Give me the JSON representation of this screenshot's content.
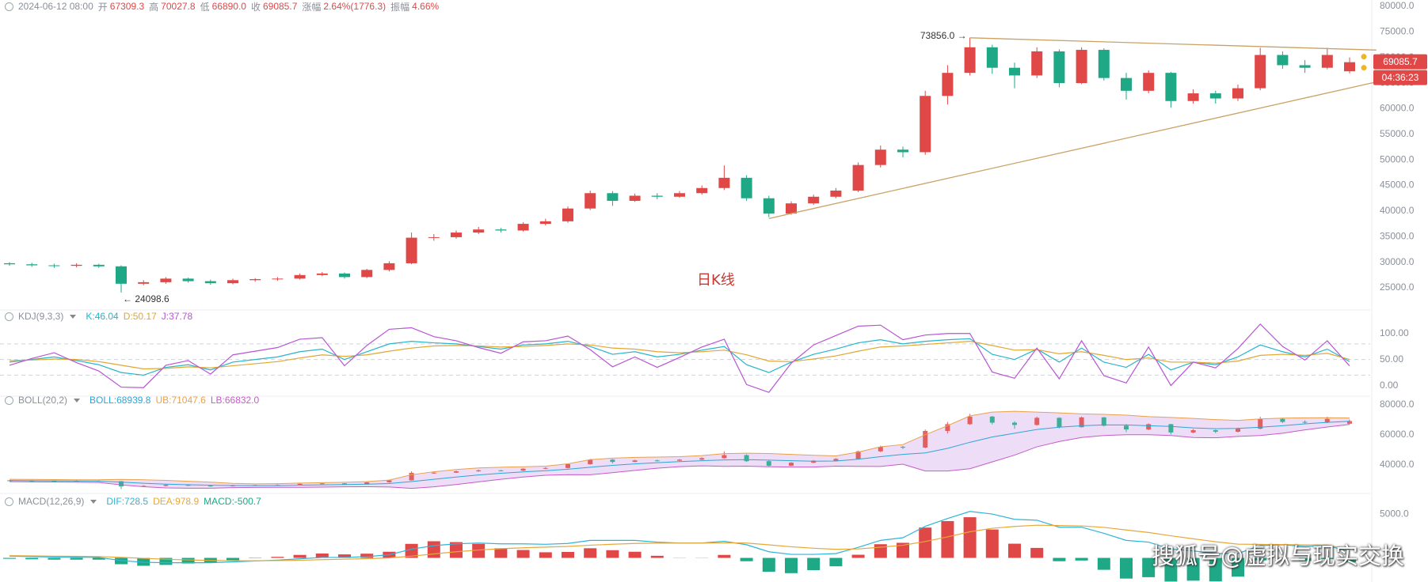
{
  "header": {
    "date": "2024-06-12 08:00",
    "items": [
      {
        "label": "开",
        "value": "67309.3"
      },
      {
        "label": "高",
        "value": "70027.8"
      },
      {
        "label": "低",
        "value": "66890.0"
      },
      {
        "label": "收",
        "value": "69085.7"
      },
      {
        "label": "涨幅",
        "value": "2.64%(1776.3)"
      },
      {
        "label": "振幅",
        "value": "4.66%"
      }
    ]
  },
  "watermark": "搜狐号@虚拟与现实交换",
  "chart_data": [
    {
      "type": "candlestick",
      "pane_label": "日K线",
      "price_tag": "69085.7",
      "countdown": "04:36:23",
      "high_label": "73856.0 →",
      "low_label": "← 24098.6",
      "up_color": "#e04848",
      "down_color": "#1fa886",
      "ylim": [
        21600,
        81240
      ],
      "yticks": [
        {
          "value": 25000,
          "label": "25000.0"
        },
        {
          "value": 30000,
          "label": "30000.0"
        },
        {
          "value": 35000,
          "label": "35000.0"
        },
        {
          "value": 40000,
          "label": "40000.0"
        },
        {
          "value": 45000,
          "label": "45000.0"
        },
        {
          "value": 50000,
          "label": "50000.0"
        },
        {
          "value": 55000,
          "label": "55000.0"
        },
        {
          "value": 60000,
          "label": "60000.0"
        },
        {
          "value": 65000,
          "label": "65000.0"
        },
        {
          "value": 70000,
          "label": "70000.0"
        },
        {
          "value": 75000,
          "label": "75000.0"
        },
        {
          "value": 80000,
          "label": "80000.0"
        }
      ],
      "open": [
        29800,
        29600,
        29400,
        29300,
        29500,
        29200,
        25800,
        26100,
        26800,
        26300,
        25900,
        26500,
        26700,
        26800,
        27500,
        27800,
        27100,
        28500,
        29800,
        34800,
        34900,
        35800,
        36400,
        36200,
        37500,
        38000,
        40500,
        43500,
        42000,
        43000,
        42800,
        43500,
        44500,
        46500,
        42500,
        39500,
        41500,
        42800,
        44000,
        49000,
        52000,
        51500,
        62500,
        67000,
        72000,
        68000,
        66500,
        71200,
        65000,
        71500,
        66000,
        63500,
        67000,
        61500,
        63000,
        62000,
        64000,
        70500,
        68500,
        68000,
        67309.3
      ],
      "high": [
        30000,
        29900,
        29700,
        29800,
        29700,
        29400,
        26500,
        27100,
        27000,
        26600,
        26800,
        26900,
        27100,
        27800,
        28100,
        28000,
        28700,
        30200,
        35800,
        35500,
        36200,
        36900,
        36700,
        37800,
        38500,
        40900,
        44000,
        43900,
        43400,
        43500,
        43900,
        45000,
        48900,
        47000,
        43000,
        41900,
        43200,
        44500,
        49500,
        52800,
        52600,
        63500,
        68500,
        73856.0,
        72500,
        69000,
        72000,
        71600,
        72000,
        71800,
        67000,
        67500,
        67200,
        63800,
        63500,
        64700,
        71900,
        71200,
        69500,
        71900,
        70027.8
      ],
      "low": [
        29300,
        29100,
        28900,
        29000,
        28900,
        24098.6,
        25500,
        25800,
        26000,
        25600,
        25700,
        26200,
        26400,
        26600,
        27300,
        26800,
        26900,
        28200,
        29600,
        34200,
        34600,
        35500,
        35800,
        36000,
        37200,
        37700,
        40200,
        41000,
        41800,
        42300,
        42600,
        43200,
        44100,
        42000,
        38800,
        39300,
        41200,
        42500,
        43700,
        48500,
        50500,
        51000,
        60800,
        66500,
        66800,
        64000,
        66000,
        64200,
        64800,
        65500,
        61800,
        63000,
        60200,
        61000,
        61000,
        61500,
        63600,
        67800,
        67000,
        67700,
        66890.0
      ],
      "close": [
        29600,
        29400,
        29300,
        29500,
        29200,
        25800,
        26100,
        26800,
        26300,
        25900,
        26500,
        26700,
        26800,
        27500,
        27800,
        27100,
        28500,
        29800,
        34800,
        34900,
        35800,
        36400,
        36200,
        37500,
        38000,
        40500,
        43500,
        42000,
        43000,
        42800,
        43500,
        44500,
        46500,
        42500,
        39500,
        41500,
        42800,
        44000,
        49000,
        52000,
        51500,
        62500,
        67000,
        72000,
        68000,
        66500,
        71200,
        65000,
        71500,
        66000,
        63500,
        67000,
        61500,
        63000,
        62000,
        64000,
        70500,
        68500,
        68000,
        70500,
        69085.7
      ],
      "trendline_color": "#c9a265",
      "trendlines": [
        {
          "x": [
            34,
            61.2
          ],
          "y": [
            38540,
            65230
          ]
        },
        {
          "x": [
            43,
            61.2
          ],
          "y": [
            73856.0,
            71460
          ]
        }
      ]
    },
    {
      "type": "line",
      "title": "KDJ(9,3,3)",
      "ylim": [
        -15.8,
        119.3
      ],
      "yticks": [
        {
          "value": 100,
          "label": "100.00"
        },
        {
          "value": 50,
          "label": "50.00"
        },
        {
          "value": 0,
          "label": "0.00"
        }
      ],
      "guides": [
        80,
        50,
        20
      ],
      "series": [
        {
          "name": "K:46.04",
          "color": "#27b4cc",
          "values": [
            45,
            50,
            55,
            48,
            40,
            25,
            20,
            35,
            40,
            30,
            45,
            50,
            55,
            65,
            70,
            50,
            65,
            80,
            85,
            82,
            80,
            75,
            70,
            78,
            80,
            85,
            75,
            60,
            65,
            55,
            60,
            68,
            75,
            40,
            25,
            45,
            60,
            70,
            82,
            88,
            80,
            85,
            88,
            90,
            60,
            50,
            70,
            45,
            72,
            45,
            35,
            60,
            30,
            45,
            40,
            55,
            78,
            65,
            55,
            70,
            46.04
          ]
        },
        {
          "name": "D:50.17",
          "color": "#e2a632",
          "values": [
            48,
            49,
            51,
            50,
            46,
            39,
            32,
            33,
            36,
            34,
            38,
            42,
            46,
            53,
            59,
            56,
            59,
            66,
            72,
            76,
            77,
            76,
            74,
            75,
            77,
            80,
            78,
            72,
            70,
            65,
            63,
            65,
            68,
            59,
            47,
            46,
            51,
            57,
            66,
            74,
            76,
            79,
            82,
            85,
            77,
            68,
            69,
            61,
            65,
            58,
            50,
            53,
            45,
            45,
            43,
            47,
            58,
            60,
            58,
            62,
            50.17
          ]
        },
        {
          "name": "J:37.78",
          "color": "#b854d4",
          "values": [
            39,
            52,
            63,
            44,
            28,
            -3,
            -4,
            39,
            48,
            22,
            59,
            66,
            73,
            89,
            92,
            38,
            77,
            108,
            111,
            94,
            86,
            73,
            62,
            84,
            86,
            95,
            69,
            36,
            55,
            35,
            54,
            74,
            89,
            2,
            -13,
            43,
            78,
            96,
            114,
            116,
            88,
            97,
            100,
            100,
            26,
            14,
            72,
            13,
            86,
            19,
            5,
            74,
            0,
            45,
            34,
            71,
            118,
            75,
            49,
            86,
            37.78
          ]
        }
      ]
    },
    {
      "type": "boll",
      "title": "BOLL(20,2)",
      "ylim": [
        24800,
        82400
      ],
      "band_color": "#e8d4f5",
      "yticks": [
        {
          "value": 80000,
          "label": "80000.0"
        },
        {
          "value": 60000,
          "label": "60000.0"
        },
        {
          "value": 40000,
          "label": "40000.0"
        }
      ],
      "series": [
        {
          "name": "BOLL:68939.8",
          "color": "#2fa6d6",
          "values": [
            29700,
            29600,
            29500,
            29400,
            29300,
            28600,
            27900,
            27300,
            26900,
            26600,
            26400,
            26300,
            26400,
            26600,
            26800,
            27000,
            27300,
            27700,
            29000,
            30500,
            32000,
            33400,
            34500,
            35400,
            36200,
            37200,
            38500,
            39700,
            40700,
            41500,
            42200,
            42800,
            43300,
            43500,
            43200,
            42800,
            42500,
            42600,
            43800,
            45500,
            47000,
            48000,
            51000,
            55000,
            58500,
            61000,
            63500,
            65000,
            66000,
            66500,
            66500,
            66000,
            65500,
            64500,
            64000,
            64200,
            65000,
            66000,
            67200,
            68200,
            68939.8
          ]
        },
        {
          "name": "UB:71047.6",
          "color": "#eaa14a",
          "values": [
            30500,
            30400,
            30300,
            30200,
            30200,
            30400,
            30200,
            29800,
            29200,
            28600,
            27800,
            27500,
            27600,
            28000,
            28300,
            28500,
            29000,
            30000,
            33500,
            35500,
            37000,
            38000,
            38500,
            38800,
            39200,
            40800,
            43500,
            44500,
            45000,
            45200,
            45500,
            46200,
            47500,
            47800,
            47600,
            47000,
            46400,
            46000,
            48500,
            52000,
            53500,
            60000,
            66000,
            72500,
            75000,
            75500,
            75000,
            74500,
            73800,
            73500,
            73000,
            72000,
            71500,
            70800,
            70000,
            69500,
            70500,
            71000,
            71200,
            71300,
            71047.6
          ]
        },
        {
          "name": "LB:66832.0",
          "color": "#c65bc9",
          "values": [
            28900,
            28800,
            28700,
            28600,
            28400,
            26800,
            25600,
            24800,
            24600,
            24600,
            25000,
            25100,
            25200,
            25200,
            25300,
            25500,
            25600,
            25400,
            24500,
            25500,
            27000,
            28800,
            30500,
            32000,
            33200,
            33600,
            33500,
            34900,
            36400,
            37800,
            38900,
            39400,
            39100,
            39200,
            38800,
            38600,
            38600,
            39200,
            39100,
            39000,
            40500,
            36000,
            36000,
            37500,
            42000,
            46500,
            52000,
            55500,
            58200,
            59500,
            60000,
            60000,
            59500,
            58200,
            58000,
            58900,
            59500,
            61000,
            63200,
            65100,
            66832.0
          ]
        }
      ]
    },
    {
      "type": "macd",
      "title": "MACD(12,26,9)",
      "ylim": [
        -2750,
        5820
      ],
      "yticks": [
        {
          "value": 5000,
          "label": "5000.0"
        }
      ],
      "series": [
        {
          "name": "DIF:728.5",
          "color": "#2fb4d8",
          "values": [
            200,
            150,
            100,
            80,
            50,
            -300,
            -500,
            -550,
            -550,
            -550,
            -450,
            -350,
            -250,
            -100,
            50,
            50,
            150,
            350,
            1000,
            1400,
            1600,
            1700,
            1600,
            1600,
            1550,
            1650,
            2000,
            2000,
            2000,
            1800,
            1700,
            1700,
            1900,
            1500,
            700,
            400,
            400,
            500,
            1200,
            2000,
            2300,
            3600,
            4500,
            5300,
            5000,
            4400,
            4300,
            3500,
            3500,
            2800,
            2000,
            1800,
            1000,
            800,
            500,
            500,
            1400,
            1500,
            1300,
            1400,
            728.5
          ]
        },
        {
          "name": "DEA:978.9",
          "color": "#e6a83a",
          "values": [
            250,
            230,
            200,
            180,
            150,
            60,
            -50,
            -150,
            -230,
            -290,
            -320,
            -330,
            -310,
            -270,
            -200,
            -150,
            -90,
            0,
            200,
            450,
            700,
            900,
            1050,
            1150,
            1230,
            1310,
            1450,
            1560,
            1650,
            1680,
            1690,
            1690,
            1730,
            1690,
            1490,
            1270,
            1100,
            980,
            1020,
            1220,
            1440,
            1870,
            2400,
            2980,
            3380,
            3590,
            3730,
            3690,
            3650,
            3480,
            3180,
            2900,
            2520,
            2180,
            1840,
            1570,
            1540,
            1530,
            1480,
            1460,
            978.9
          ]
        }
      ],
      "bars": {
        "name": "MACD:-500.7",
        "up_color": "#e04848",
        "down_color": "#1fa886",
        "values": [
          -100,
          -160,
          -200,
          -200,
          -200,
          -720,
          -900,
          -800,
          -640,
          -520,
          -260,
          -40,
          120,
          340,
          500,
          400,
          480,
          700,
          1600,
          1900,
          1800,
          1600,
          1100,
          900,
          640,
          680,
          1100,
          880,
          700,
          240,
          20,
          20,
          340,
          -380,
          -1580,
          -1740,
          -1400,
          -960,
          360,
          1560,
          1720,
          3460,
          4200,
          4640,
          3240,
          1620,
          1140,
          -380,
          -300,
          -1360,
          -2360,
          -2200,
          -2700,
          -2600,
          -2680,
          -2140,
          -280,
          -60,
          -360,
          -120,
          -500.7
        ]
      }
    }
  ]
}
